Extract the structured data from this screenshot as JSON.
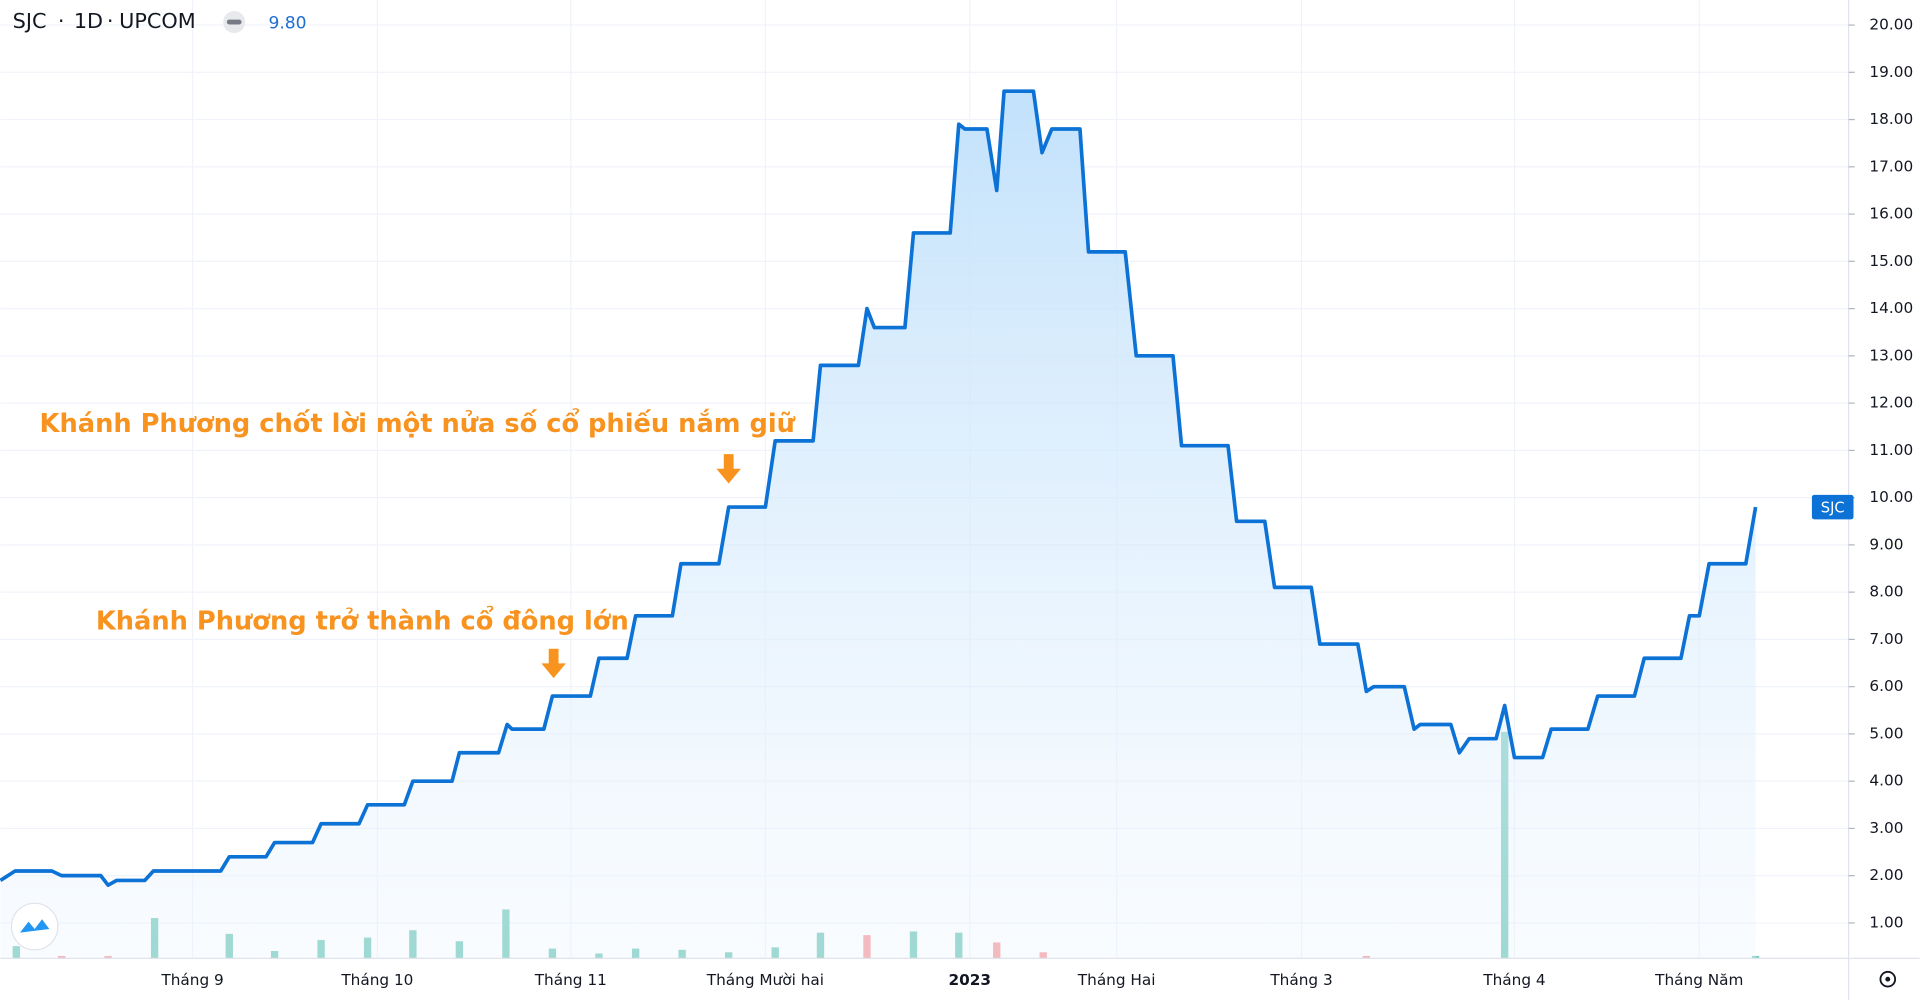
{
  "header": {
    "symbol": "SJC",
    "interval": "1D",
    "exchange": "UPCOM",
    "last": "9.80"
  },
  "chart_data": {
    "type": "area",
    "series": [
      {
        "name": "SJC",
        "color": "#0c72d6",
        "x": [
          0,
          1.2,
          4.2,
          5,
          8.2,
          8.8,
          9.5,
          11.8,
          12.5,
          18,
          18.7,
          21.7,
          22.4,
          25.5,
          26.2,
          29.3,
          30,
          33,
          33.7,
          36.9,
          37.5,
          40.7,
          41.4,
          41.8,
          44.4,
          45.1,
          48.2,
          48.9,
          51.2,
          51.9,
          54.9,
          55.6,
          58.7,
          59.5,
          62.5,
          63.3,
          66.4,
          67,
          70.1,
          70.8,
          71.4,
          73.9,
          74.6,
          77.6,
          78.3,
          78.8,
          80.6,
          81.4,
          82,
          84.4,
          85.1,
          85.9,
          88.2,
          88.9,
          91.9,
          92.8,
          95.8,
          96.5,
          100.3,
          101,
          103.3,
          104.1,
          107.1,
          107.8,
          110.9,
          111.6,
          112.2,
          114.7,
          115.5,
          116,
          118.5,
          119.2,
          120,
          122.2,
          122.9,
          123.7,
          126,
          126.7,
          129.7,
          130.5,
          133.5,
          134.3,
          137.3,
          138,
          138.8,
          139.6,
          142.6,
          143.4
        ],
        "values": [
          1.9,
          2.1,
          2.1,
          2.0,
          2.0,
          1.8,
          1.9,
          1.9,
          2.1,
          2.1,
          2.4,
          2.4,
          2.7,
          2.7,
          3.1,
          3.1,
          3.5,
          3.5,
          4.0,
          4.0,
          4.6,
          4.6,
          5.2,
          5.1,
          5.1,
          5.8,
          5.8,
          6.6,
          6.6,
          7.5,
          7.5,
          8.6,
          8.6,
          9.8,
          9.8,
          11.2,
          11.2,
          12.8,
          12.8,
          14.0,
          13.6,
          13.6,
          15.6,
          15.6,
          17.9,
          17.8,
          17.8,
          16.5,
          18.6,
          18.6,
          17.3,
          17.8,
          17.8,
          15.2,
          15.2,
          13.0,
          13.0,
          11.1,
          11.1,
          9.5,
          9.5,
          8.1,
          8.1,
          6.9,
          6.9,
          5.9,
          6.0,
          6.0,
          5.1,
          5.2,
          5.2,
          4.6,
          4.9,
          4.9,
          5.6,
          4.5,
          4.5,
          5.1,
          5.1,
          5.8,
          5.8,
          6.6,
          6.6,
          7.5,
          7.5,
          8.6,
          8.6,
          9.8
        ]
      }
    ],
    "volume": [
      {
        "color": "#7ecdc0",
        "x": [
          1.3,
          12.6,
          18.7,
          22.4,
          26.2,
          30,
          33.7,
          37.5,
          41.3,
          45.1,
          48.9,
          51.9,
          55.7,
          59.5,
          63.3,
          67,
          74.6,
          78.3,
          122.9,
          143.4
        ],
        "values": [
          10,
          33,
          20,
          6,
          15,
          17,
          23,
          14,
          40,
          8,
          4,
          8,
          7,
          5,
          9,
          21,
          22,
          21,
          185,
          2
        ]
      },
      {
        "color": "#f7a1a5",
        "x": [
          5,
          8.8,
          70.8,
          81.4,
          85.2,
          111.6
        ],
        "values": [
          2,
          2,
          19,
          13,
          5,
          2
        ]
      }
    ],
    "xlim": [
      0,
      151
    ],
    "xticks": [
      {
        "value": 15.7,
        "label": "Tháng 9"
      },
      {
        "value": 30.8,
        "label": "Tháng 10"
      },
      {
        "value": 46.6,
        "label": "Tháng 11"
      },
      {
        "value": 62.5,
        "label": "Tháng Mười hai"
      },
      {
        "value": 79.2,
        "label": "2023"
      },
      {
        "value": 91.2,
        "label": "Tháng Hai"
      },
      {
        "value": 106.3,
        "label": "Tháng 3"
      },
      {
        "value": 123.7,
        "label": "Tháng 4"
      },
      {
        "value": 138.8,
        "label": "Tháng Năm"
      }
    ],
    "ylim": [
      0.25,
      20.53
    ],
    "yticks": [
      {
        "value": 1,
        "label": "1.00"
      },
      {
        "value": 2,
        "label": "2.00"
      },
      {
        "value": 3,
        "label": "3.00"
      },
      {
        "value": 4,
        "label": "4.00"
      },
      {
        "value": 5,
        "label": "5.00"
      },
      {
        "value": 6,
        "label": "6.00"
      },
      {
        "value": 7,
        "label": "7.00"
      },
      {
        "value": 8,
        "label": "8.00"
      },
      {
        "value": 9,
        "label": "9.00"
      },
      {
        "value": 10,
        "label": "10.00"
      },
      {
        "value": 11,
        "label": "11.00"
      },
      {
        "value": 12,
        "label": "12.00"
      },
      {
        "value": 13,
        "label": "13.00"
      },
      {
        "value": 14,
        "label": "14.00"
      },
      {
        "value": 15,
        "label": "15.00"
      },
      {
        "value": 16,
        "label": "16.00"
      },
      {
        "value": 17,
        "label": "17.00"
      },
      {
        "value": 18,
        "label": "18.00"
      },
      {
        "value": 19,
        "label": "19.00"
      },
      {
        "value": 20,
        "label": "20.00"
      }
    ],
    "grid": true,
    "annotations": [
      "Khánh Phương chốt lời một nửa số cổ phiếu nắm giữ",
      "Khánh Phương trở thành cổ đông lớn"
    ],
    "annotation_color": "#f7931e"
  }
}
